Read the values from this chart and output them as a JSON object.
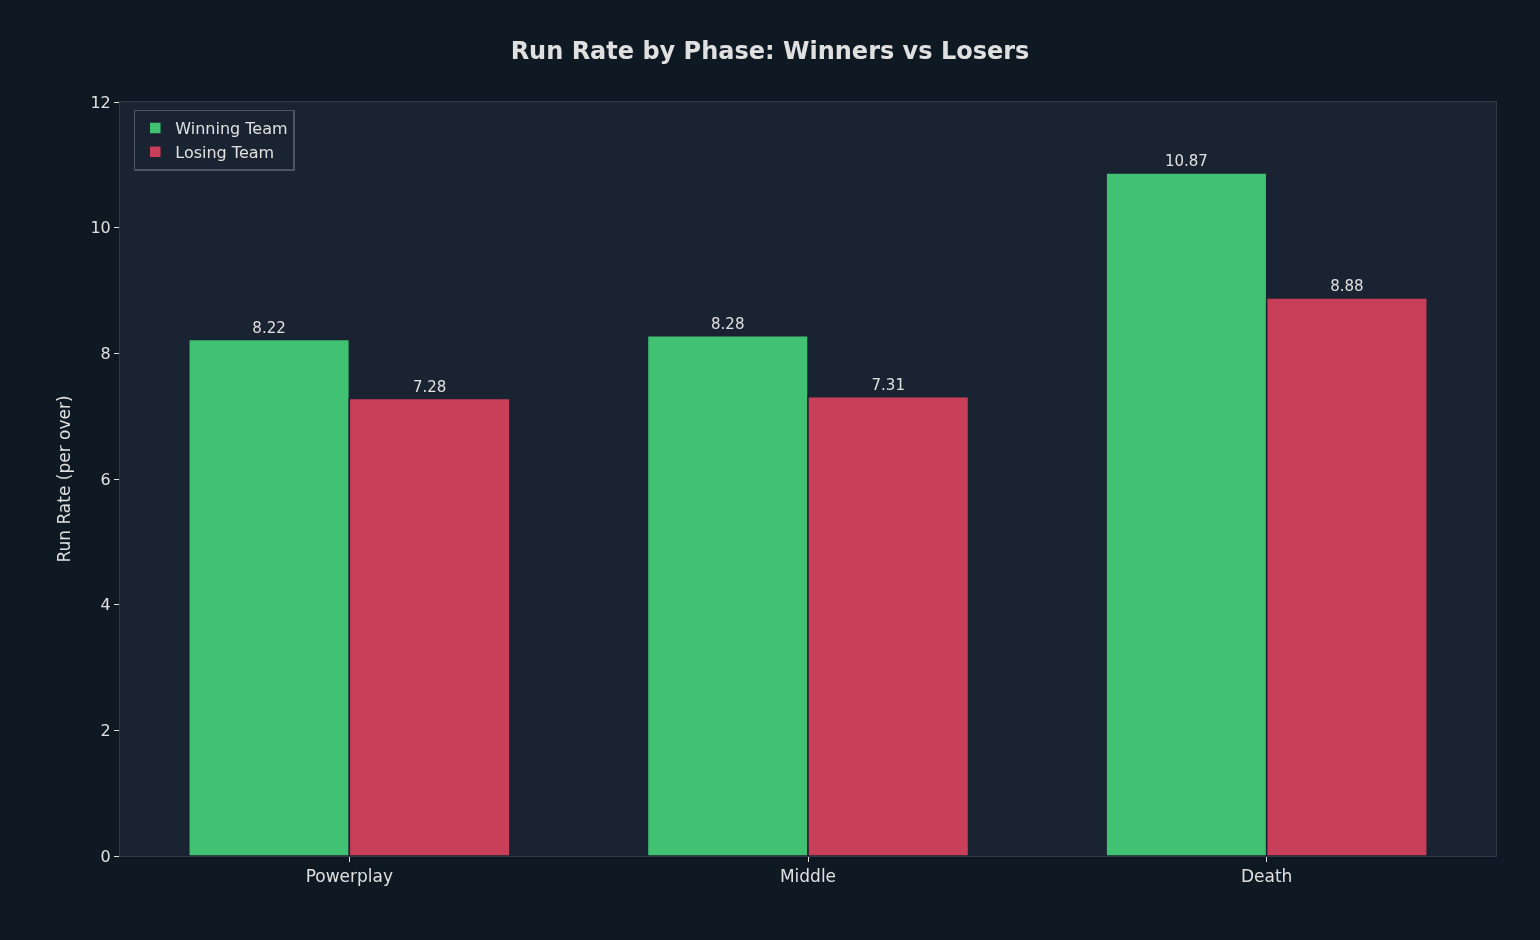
{
  "chart_data": {
    "type": "bar",
    "title": "Run Rate by Phase: Winners vs Losers",
    "ylabel": "Run Rate (per over)",
    "categories": [
      "Powerplay",
      "Middle",
      "Death"
    ],
    "series": [
      {
        "name": "Winning Team",
        "color": "#41c273",
        "values": [
          8.22,
          8.28,
          10.87
        ]
      },
      {
        "name": "Losing Team",
        "color": "#c93f59",
        "values": [
          7.28,
          7.31,
          8.88
        ]
      }
    ],
    "ylim": [
      0,
      12
    ],
    "yticks": [
      0,
      2,
      4,
      6,
      8,
      10,
      12
    ],
    "data_labels": true,
    "legend": "top left",
    "grid": false
  }
}
